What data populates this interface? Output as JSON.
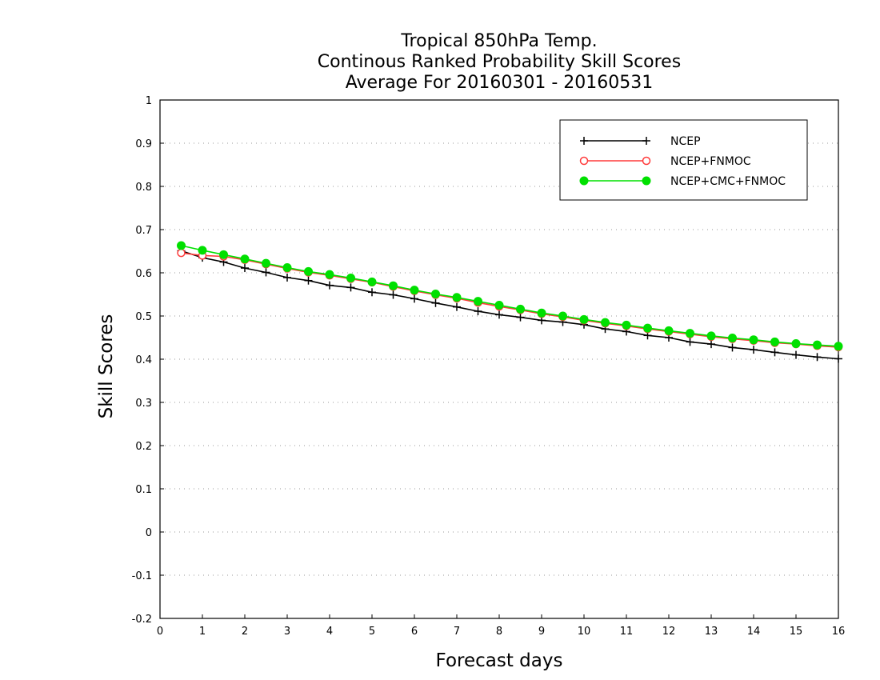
{
  "chart_data": {
    "type": "line",
    "title_lines": [
      "Tropical 850hPa Temp.",
      "Continous Ranked Probability Skill Scores",
      "Average For 20160301 - 20160531"
    ],
    "xlabel": "Forecast days",
    "ylabel": "Skill Scores",
    "xlim": [
      0,
      16
    ],
    "ylim": [
      -0.2,
      1
    ],
    "x_ticks": [
      0,
      1,
      2,
      3,
      4,
      5,
      6,
      7,
      8,
      9,
      10,
      11,
      12,
      13,
      14,
      15,
      16
    ],
    "x_tick_labels": [
      "0",
      "1",
      "2",
      "3",
      "4",
      "5",
      "6",
      "7",
      "8",
      "9",
      "10",
      "11",
      "12",
      "13",
      "14",
      "15",
      "16"
    ],
    "y_ticks": [
      -0.2,
      -0.1,
      0,
      0.1,
      0.2,
      0.3,
      0.4,
      0.5,
      0.6,
      0.7,
      0.8,
      0.9,
      1
    ],
    "y_tick_labels": [
      "-0.2",
      "-0.1",
      "0",
      "0.1",
      "0.2",
      "0.3",
      "0.4",
      "0.5",
      "0.6",
      "0.7",
      "0.8",
      "0.9",
      "1"
    ],
    "grid": "horizontal dotted",
    "legend_position": "top-right",
    "x": [
      0.5,
      1,
      1.5,
      2,
      2.5,
      3,
      3.5,
      4,
      4.5,
      5,
      5.5,
      6,
      6.5,
      7,
      7.5,
      8,
      8.5,
      9,
      9.5,
      10,
      10.5,
      11,
      11.5,
      12,
      12.5,
      13,
      13.5,
      14,
      14.5,
      15,
      15.5,
      16
    ],
    "series": [
      {
        "name": "NCEP",
        "color": "#000000",
        "marker": "plus",
        "values": [
          0.651,
          0.635,
          0.625,
          0.611,
          0.601,
          0.589,
          0.582,
          0.571,
          0.566,
          0.555,
          0.549,
          0.54,
          0.53,
          0.521,
          0.511,
          0.503,
          0.497,
          0.49,
          0.486,
          0.48,
          0.47,
          0.464,
          0.455,
          0.45,
          0.44,
          0.435,
          0.427,
          0.422,
          0.416,
          0.41,
          0.405,
          0.401
        ]
      },
      {
        "name": "NCEP+FNMOC",
        "color": "#ff3b3b",
        "marker": "open-circle",
        "values": [
          0.646,
          0.64,
          0.638,
          0.63,
          0.62,
          0.61,
          0.601,
          0.594,
          0.586,
          0.578,
          0.568,
          0.558,
          0.549,
          0.541,
          0.531,
          0.522,
          0.514,
          0.505,
          0.498,
          0.49,
          0.483,
          0.477,
          0.47,
          0.464,
          0.458,
          0.452,
          0.447,
          0.443,
          0.438,
          0.435,
          0.431,
          0.428
        ]
      },
      {
        "name": "NCEP+CMC+FNMOC",
        "color": "#00e000",
        "marker": "filled-circle",
        "values": [
          0.663,
          0.652,
          0.642,
          0.632,
          0.622,
          0.612,
          0.603,
          0.596,
          0.588,
          0.579,
          0.57,
          0.56,
          0.551,
          0.543,
          0.534,
          0.525,
          0.516,
          0.507,
          0.5,
          0.492,
          0.485,
          0.479,
          0.472,
          0.466,
          0.46,
          0.454,
          0.449,
          0.445,
          0.44,
          0.436,
          0.433,
          0.43
        ]
      }
    ]
  }
}
